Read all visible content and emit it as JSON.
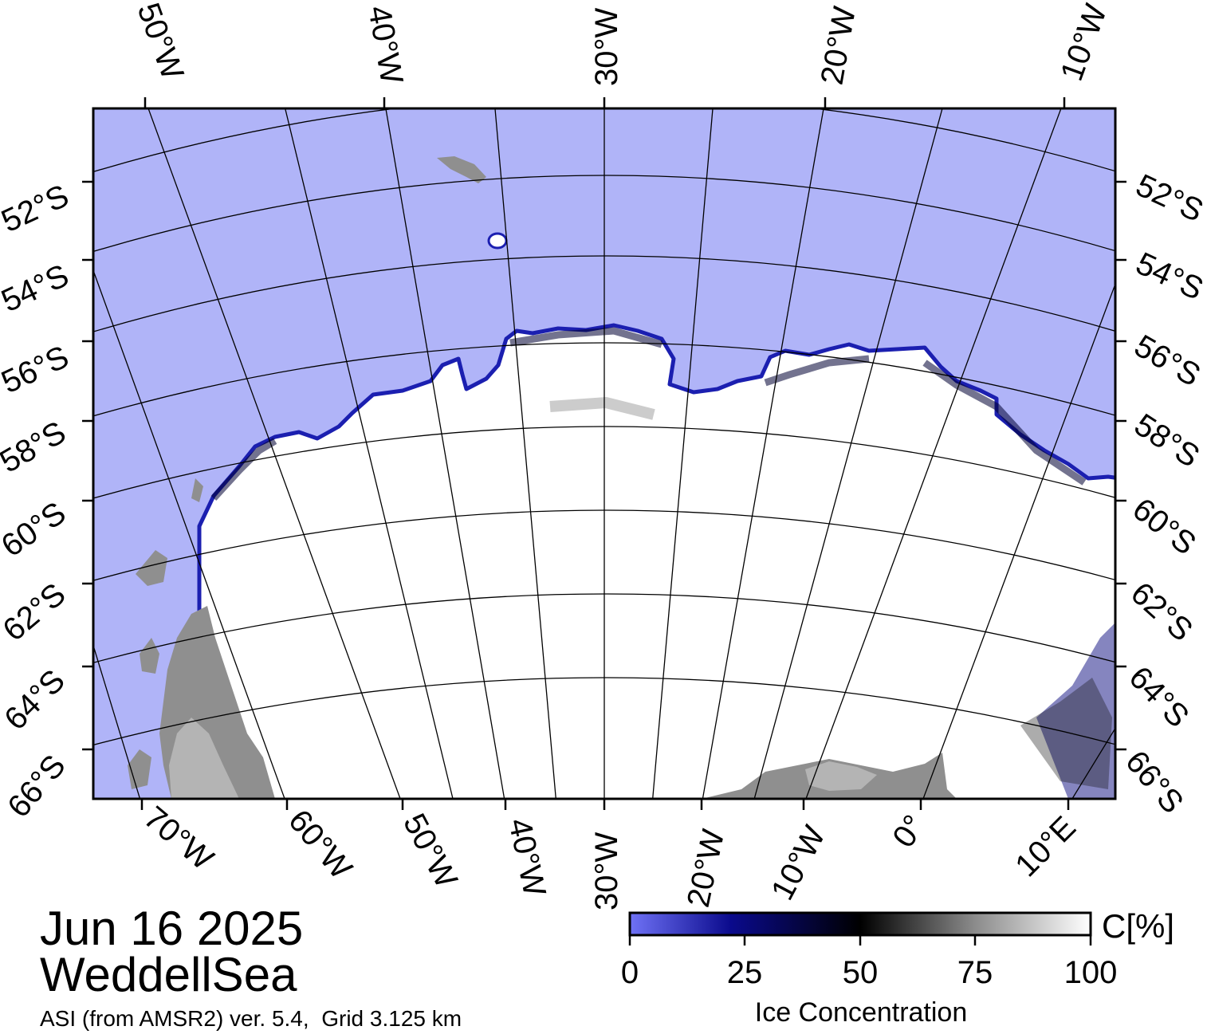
{
  "map": {
    "top_labels": [
      "50°W",
      "40°W",
      "30°W",
      "20°W",
      "10°W"
    ],
    "left_labels": [
      "52°S",
      "54°S",
      "56°S",
      "58°S",
      "60°S",
      "62°S",
      "64°S",
      "66°S"
    ],
    "right_labels": [
      "52°S",
      "54°S",
      "56°S",
      "58°S",
      "60°S",
      "62°S",
      "64°S",
      "66°S"
    ],
    "bottom_labels": [
      "70°W",
      "60°W",
      "50°W",
      "40°W",
      "30°W",
      "20°W",
      "10°W",
      "0°",
      "10°E"
    ],
    "colors": {
      "open_water": "#b0b4f8",
      "ice": "#ffffff",
      "land": "#8f8f8f",
      "ice_shelf": "#b4b4b4",
      "ice_edge": "#1b1fb0",
      "grid": "#000000"
    }
  },
  "title": {
    "date": "Jun 16 2025",
    "region": "WeddellSea",
    "product": "ASI (from AMSR2) ver. 5.4,  Grid 3.125 km"
  },
  "colorbar": {
    "unit": "C[%]",
    "ticks": [
      "0",
      "25",
      "50",
      "75",
      "100"
    ],
    "label": "Ice Concentration",
    "colors": [
      "#6d70f4",
      "#00007a",
      "#000000",
      "#8a8a8a",
      "#ffffff"
    ]
  }
}
